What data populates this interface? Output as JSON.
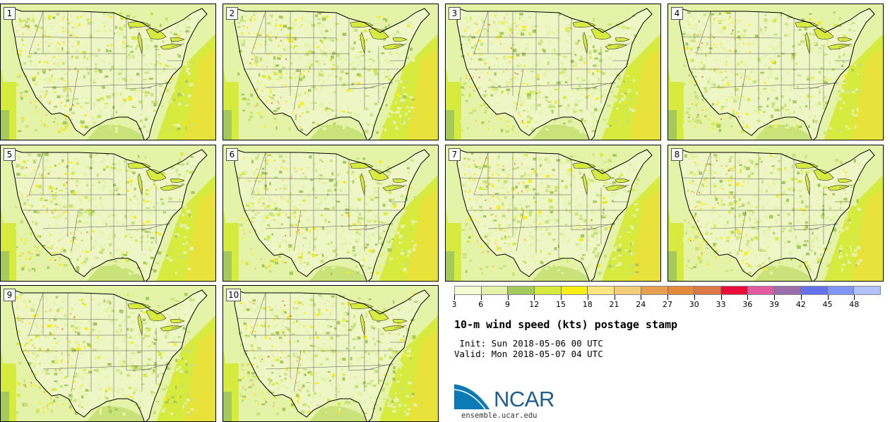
{
  "panels": [
    {
      "label": "1"
    },
    {
      "label": "2"
    },
    {
      "label": "3"
    },
    {
      "label": "4"
    },
    {
      "label": "5"
    },
    {
      "label": "6"
    },
    {
      "label": "7"
    },
    {
      "label": "8"
    },
    {
      "label": "9"
    },
    {
      "label": "10"
    }
  ],
  "colorbar": {
    "colors": [
      "#f3fad4",
      "#e4f3a8",
      "#a4ca5c",
      "#d7ea3e",
      "#f7ee14",
      "#fbe683",
      "#f2cd78",
      "#e8a050",
      "#e3893a",
      "#dc7845",
      "#ec0c3b",
      "#e35aa0",
      "#9a6ea8",
      "#6472ee",
      "#8096f6",
      "#afc2fa"
    ],
    "ticks": [
      "3",
      "6",
      "9",
      "12",
      "15",
      "18",
      "21",
      "24",
      "27",
      "30",
      "33",
      "36",
      "39",
      "42",
      "45",
      "48"
    ]
  },
  "title": "10-m wind speed (kts) postage stamp",
  "init": " Init: Sun 2018-05-06 00 UTC",
  "valid": "Valid: Mon 2018-05-07 04 UTC",
  "logo": {
    "text": "NCAR",
    "colors": {
      "blue": "#1f5e8e",
      "swoosh": "#0c7ab6"
    }
  },
  "site": "ensemble.ucar.edu"
}
